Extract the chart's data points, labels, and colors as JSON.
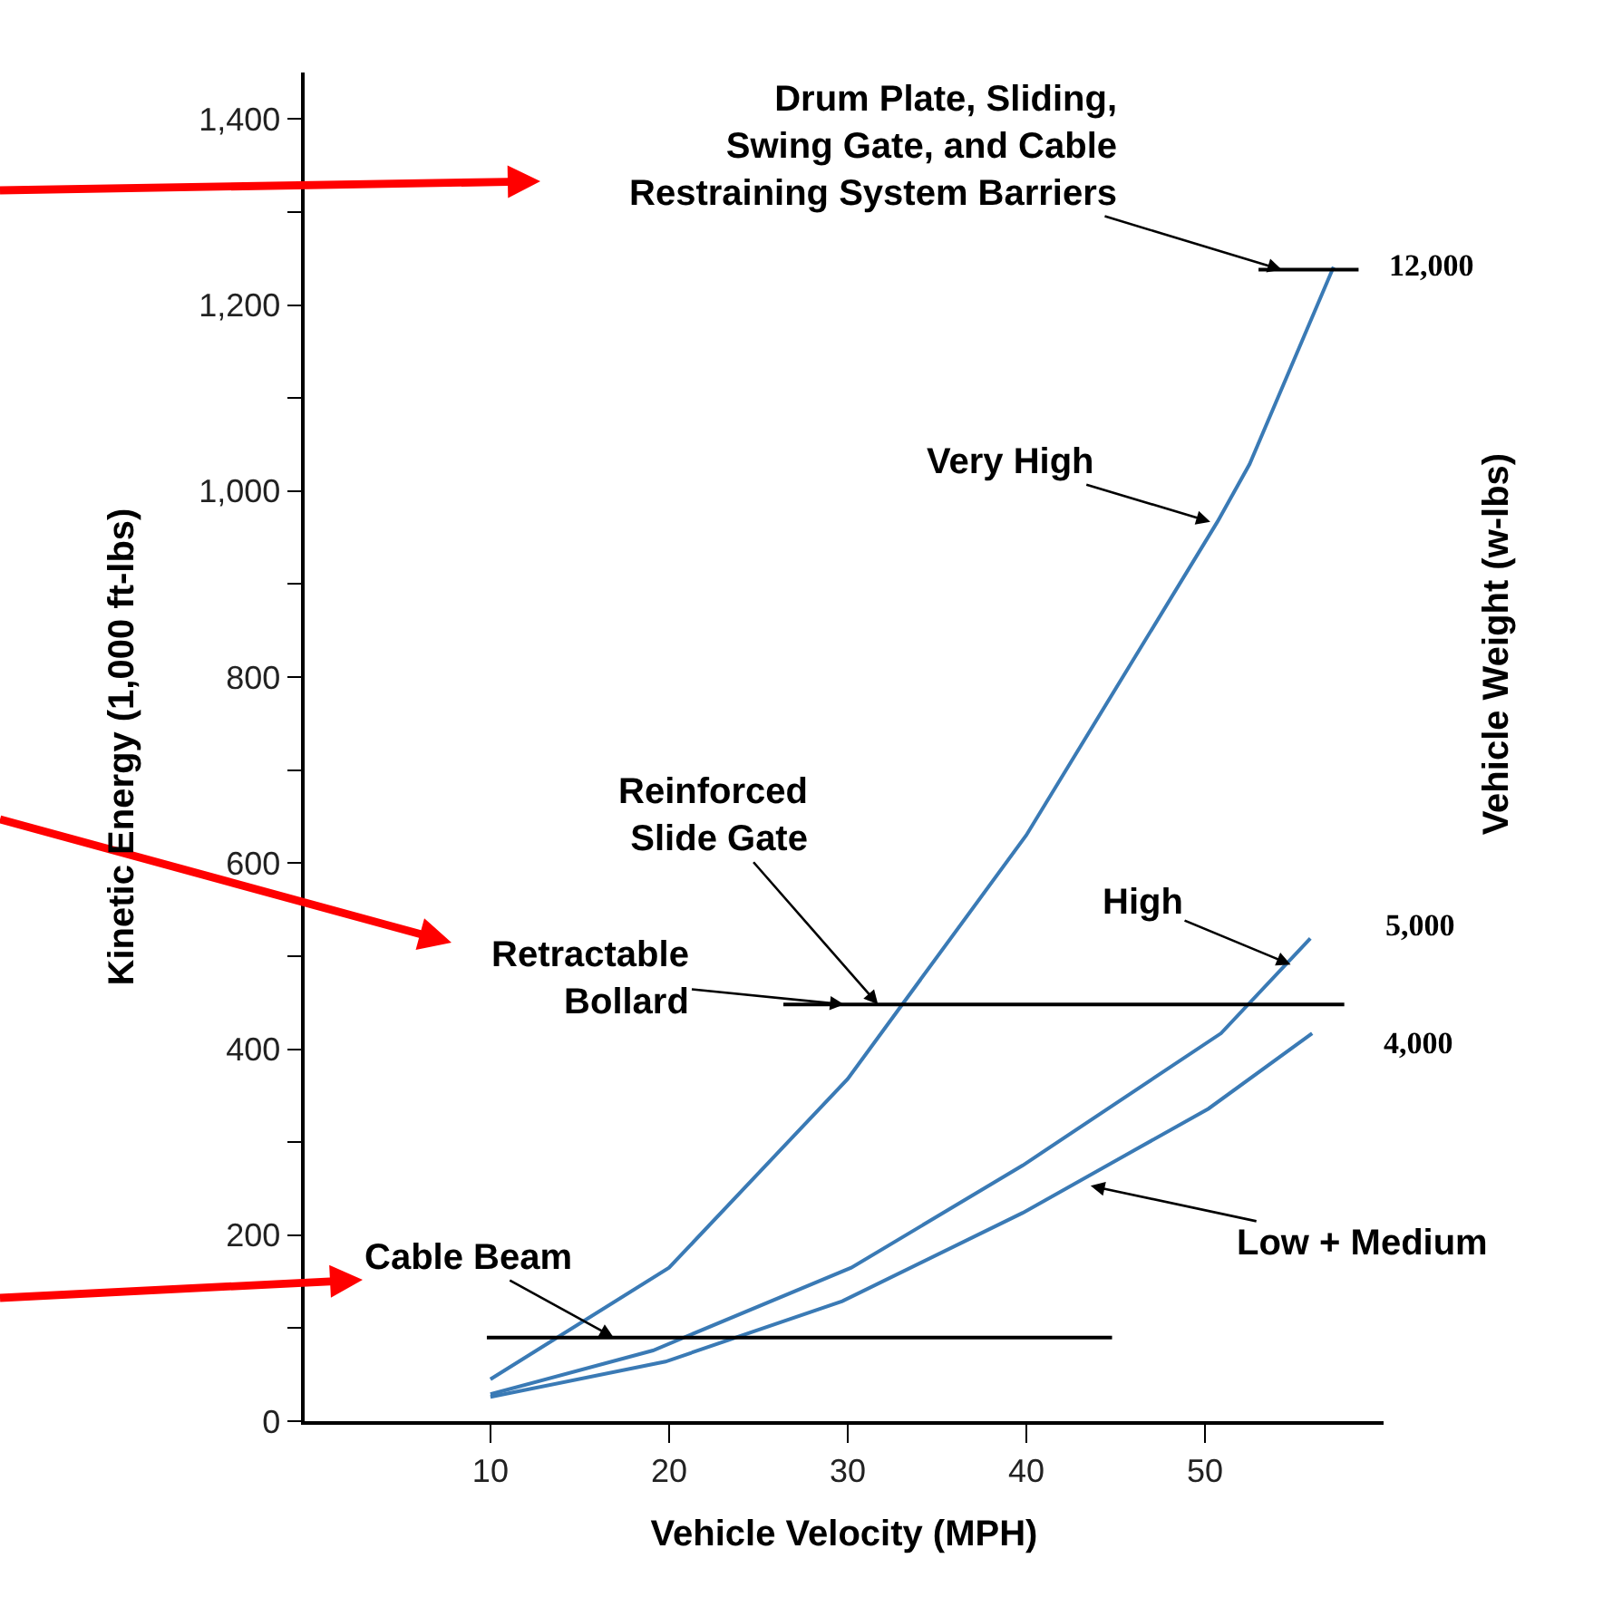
{
  "chart_data": {
    "type": "line",
    "xlabel": "Vehicle Velocity (MPH)",
    "ylabel": "Kinetic Energy (1,000 ft-lbs)",
    "y2label": "Vehicle Weight (w-lbs)",
    "xlim": [
      -0.4,
      60
    ],
    "xticks": [
      10,
      20,
      30,
      40,
      50
    ],
    "ylim": [
      0,
      1450
    ],
    "yticks": [
      0,
      {
        "value": 100,
        "label": null
      },
      {
        "value": 200,
        "label": "200"
      },
      {
        "value": 300,
        "label": null
      },
      {
        "value": 400,
        "label": "400"
      },
      {
        "value": 500,
        "label": null
      },
      {
        "value": 600,
        "label": "600"
      },
      {
        "value": 700,
        "label": null
      },
      {
        "value": 800,
        "label": "800"
      },
      {
        "value": 900,
        "label": null
      },
      {
        "value": 1000,
        "label": "1,000"
      },
      {
        "value": 1100,
        "label": null
      },
      {
        "value": 1200,
        "label": "1,200"
      },
      {
        "value": 1300,
        "label": null
      },
      {
        "value": 1400,
        "label": "1,400"
      }
    ],
    "series": [
      {
        "name": "12,000",
        "color": "#3a7ab5",
        "x": [
          10,
          20,
          30,
          40,
          50.7,
          52.5,
          57.2
        ],
        "values": [
          45,
          165,
          368,
          630,
          967,
          1029,
          1241
        ]
      },
      {
        "name": "5,000",
        "color": "#3a7ab5",
        "x": [
          10,
          19.1,
          30.2,
          39.8,
          50.9,
          55.9
        ],
        "values": [
          29,
          76,
          165,
          275,
          417,
          519
        ]
      },
      {
        "name": "4,000",
        "color": "#3a7ab5",
        "x": [
          10,
          19.8,
          29.7,
          39.8,
          50.2,
          56
        ],
        "values": [
          26,
          64,
          129,
          224,
          336,
          417
        ]
      },
      {
        "type": "line",
        "color": "#000000",
        "x": [
          53,
          58.6
        ],
        "values": [
          1238,
          1238
        ]
      },
      {
        "type": "line",
        "color": "#000000",
        "x": [
          26.4,
          57.8
        ],
        "values": [
          448,
          448
        ]
      },
      {
        "type": "line",
        "color": "#000000",
        "x": [
          9.8,
          44.8
        ],
        "values": [
          90,
          90
        ]
      }
    ],
    "annotations": [
      {
        "text": "Drum Plate, Sliding,\nSwing Gate, and Cable\nRestraining System Barriers",
        "x": 54.3,
        "y": 1238
      },
      {
        "text": "Very High",
        "x": 50.3,
        "y": 967
      },
      {
        "text": "High",
        "x": 54.8,
        "y": 491
      },
      {
        "text": "Low + Medium",
        "x": 43.6,
        "y": 253
      },
      {
        "text": "Reinforced\nSlide Gate",
        "x": 31.7,
        "y": 448
      },
      {
        "text": "Retractable\nBollard",
        "x": 29.8,
        "y": 448
      },
      {
        "text": "Cable Beam",
        "x": 16.9,
        "y": 90
      }
    ],
    "legend": false,
    "grid": false,
    "marker": "none",
    "line_style": "solid"
  }
}
